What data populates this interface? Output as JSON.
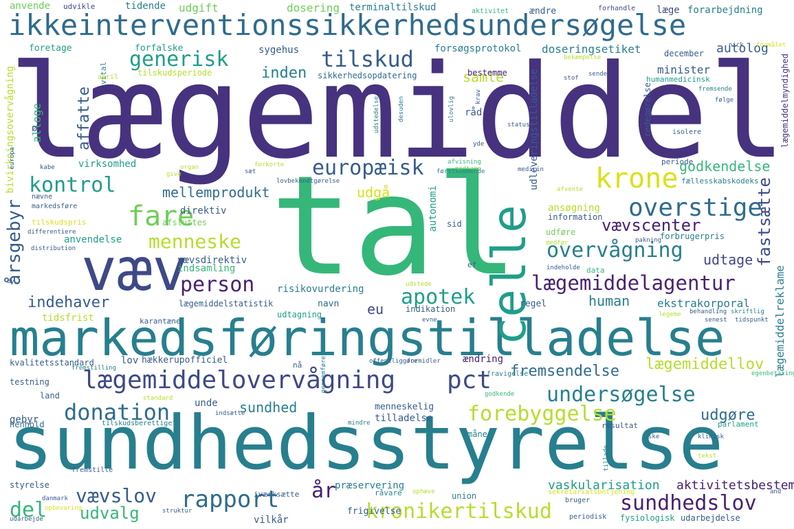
{
  "palette": {
    "dark_purple": "#46327e",
    "deep_purple": "#482173",
    "indigo": "#3e4989",
    "blue": "#365c8d",
    "steel_blue": "#2f6c8e",
    "teal": "#277f8e",
    "sea_green": "#1f9e89",
    "green": "#35b779",
    "lime": "#6ece58",
    "yellow_green": "#b5de2b",
    "yellow": "#d8e219"
  },
  "words": [
    "lægemiddel",
    "tal",
    "sundhedsstyrelse",
    "markedsføringstilladelse",
    "ikkeinterventionssikkerhedsundersøgelse",
    "væv",
    "celle",
    "lægemiddelovervågning",
    "pct",
    "krone",
    "fare",
    "overstige",
    "overvågning",
    "lægemiddelagentur",
    "europæisk",
    "kontrol",
    "generisk",
    "tilskud",
    "menneske",
    "apotek",
    "person",
    "rapport",
    "donation",
    "forebyggelse",
    "undersøgelse",
    "kronikertilskud",
    "sundhedslov",
    "vævslov",
    "vævscenter",
    "årsgebyr",
    "fastsætte",
    "udtage",
    "godkendelse",
    "human",
    "fremsendelse",
    "lægemiddellov",
    "mellemprodukt",
    "indehaver",
    "udvalg",
    "del",
    "år",
    "sundhed",
    "udgøre",
    "affatte",
    "inden",
    "samle",
    "udgå",
    "eu",
    "lægemiddelreklame",
    "aktivitetsbestemt",
    "vaskularisation",
    "ekstrakorporal",
    "minister",
    "autolog",
    "læge",
    "forarbejdning",
    "dosering",
    "terminaltilskud",
    "udgift",
    "tidende",
    "anvende",
    "udvikle",
    "aktivitet",
    "ændre",
    "forhandle",
    "forsøgsprotokol",
    "doseringsetiket",
    "sygehus",
    "forfalske",
    "foretage",
    "december",
    "tilskudsperiode",
    "sikkerhedsopdatering",
    "bestemme",
    "humanmedicinsk",
    "redegørelse",
    "lægemiddelmyndighed",
    "bivirkningsovervågning",
    "alloge",
    "ø",
    "vital",
    "april",
    "udleveringstilladelse",
    "virksomhed",
    "direktiv",
    "ansøgning",
    "information",
    "udføre",
    "forbrugerpris",
    "anvendelse",
    "vævsdirektiv",
    "indsamling",
    "risikovurdering",
    "lægemiddelstatistik",
    "navn",
    "udtagning",
    "indikation",
    "regel",
    "tidsfrist",
    "karantæne",
    "kvalitetsstandard",
    "lov",
    "hækkerupofficiel",
    "nå",
    "ændring",
    "gebyr",
    "henhold",
    "tilskudsberettiget",
    "menneskelig",
    "tilladelse",
    "måned",
    "resultat",
    "parlament",
    "præservering",
    "union",
    "frigivelse",
    "vilkår",
    "fysiologisk",
    "udarbejdelse",
    "styrelse",
    "iværksætte",
    "autonomi",
    "periode",
    "fællesskabskodeks",
    "afsluttes",
    "markedsføre",
    "nævne",
    "tilskudspris",
    "differentiere",
    "distribution",
    "land",
    "testning",
    "fremstilling",
    "unde",
    "råd",
    "status",
    "isolere",
    "følge",
    "fremsende",
    "stof",
    "sende",
    "krav",
    "desuden",
    "udstedelse",
    "ulovlig",
    "yde",
    "medicin",
    "modtage",
    "afvisning",
    "førstkommende",
    "lovbekendtgørelse",
    "forkorte",
    "sæt",
    "organ",
    "give",
    "kabe",
    "europa",
    "sid",
    "afvente",
    "medfør",
    "pakning",
    "indeholde",
    "data",
    "ef",
    "legeme",
    "behandling",
    "skriftlig",
    "senest",
    "tidspunkt",
    "evne",
    "udstede",
    "offentliggøre",
    "formidler",
    "fravigelse",
    "egenbetaling",
    "godkende",
    "standard",
    "indsætte",
    "mindre",
    "klinisk",
    "ske",
    "tillade",
    "tekst",
    "fremstille",
    "danmark",
    "ophæve",
    "råvare",
    "sekretariatsbetjening",
    "bruger",
    "periodisk",
    "struktur",
    "udarbejde",
    "opbevaring",
    "and",
    "dy",
    "bekæmpelse",
    "formålet",
    "nick",
    "gennemføre"
  ]
}
